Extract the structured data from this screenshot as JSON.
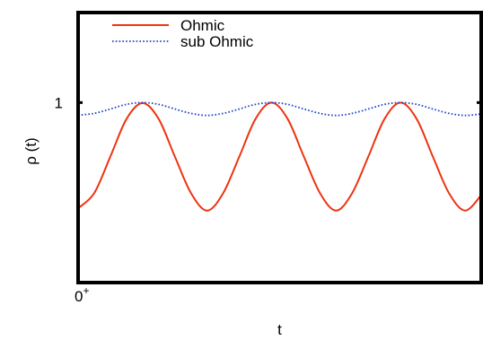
{
  "chart_data": {
    "type": "line",
    "title": "",
    "xlabel": "t",
    "ylabel": "ρ (t)",
    "x_tick_labels": [
      {
        "x": 0,
        "label": "0",
        "superscript": "+"
      }
    ],
    "y_tick_labels": [
      {
        "y": 1,
        "label": "1"
      }
    ],
    "xlim": [
      0,
      6.25
    ],
    "ylim": [
      0.3,
      1.35
    ],
    "grid": false,
    "legend_position": "top-left",
    "series": [
      {
        "name": "Ohmic",
        "style": "solid",
        "color": "#ee3311",
        "description": "oscillates between about 0.58 and 1.0",
        "x": [
          0,
          0.25,
          0.5,
          0.75,
          1,
          1.25,
          1.5,
          1.75,
          2,
          2.25,
          2.5,
          2.75,
          3,
          3.25,
          3.5,
          3.75,
          4,
          4.25,
          4.5,
          4.75,
          5,
          5.25,
          5.5,
          5.75,
          6,
          6.25
        ],
        "y": [
          0.589,
          0.648,
          0.79,
          0.936,
          0.998,
          0.936,
          0.79,
          0.648,
          0.58,
          0.648,
          0.79,
          0.936,
          1.0,
          0.936,
          0.79,
          0.648,
          0.58,
          0.648,
          0.79,
          0.936,
          1.0,
          0.936,
          0.79,
          0.648,
          0.58,
          0.64
        ]
      },
      {
        "name": "sub Ohmic",
        "style": "dotted",
        "color": "#2244cc",
        "description": "oscillates between about 0.95 and 1.0",
        "x": [
          0,
          0.25,
          0.5,
          0.75,
          1,
          1.25,
          1.5,
          1.75,
          2,
          2.25,
          2.5,
          2.75,
          3,
          3.25,
          3.5,
          3.75,
          4,
          4.25,
          4.5,
          4.75,
          5,
          5.25,
          5.5,
          5.75,
          6,
          6.25
        ],
        "y": [
          0.951,
          0.958,
          0.975,
          0.993,
          1.0,
          0.993,
          0.975,
          0.958,
          0.95,
          0.958,
          0.975,
          0.993,
          1.0,
          0.993,
          0.975,
          0.958,
          0.95,
          0.958,
          0.975,
          0.993,
          1.0,
          0.993,
          0.975,
          0.958,
          0.95,
          0.956
        ]
      }
    ]
  }
}
